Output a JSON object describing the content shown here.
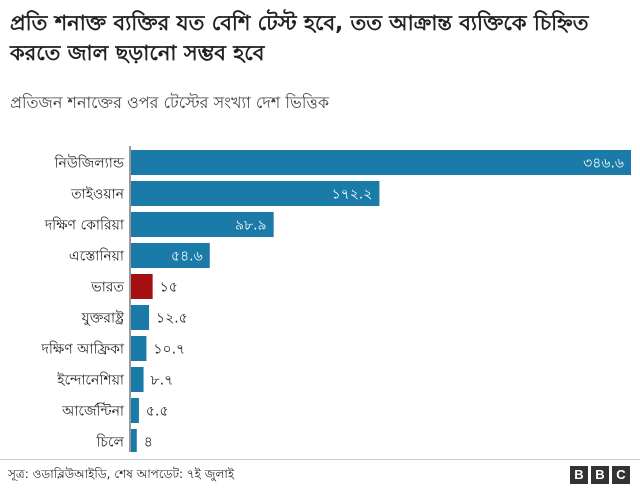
{
  "title": "প্রতি শনাক্ত ব্যক্তির যত বেশি টেস্ট হবে, তত আক্রান্ত ব্যক্তিকে চিহ্নিত করতে জাল ছড়ানো সম্ভব হবে",
  "subtitle": "প্রতিজন শনাক্তের ওপর টেস্টের সংখ্যা দেশ ভিত্তিক",
  "source": "সূত্র: ওডাব্লিউআইডি, শেষ আপডেট: ৭ই জুলাই",
  "logo": [
    "B",
    "B",
    "C"
  ],
  "colors": {
    "default": "#1a7aa8",
    "highlight": "#a50f0f",
    "label_inside": "#ffffff",
    "label_outside": "#222222"
  },
  "chart_data": {
    "type": "bar",
    "orientation": "horizontal",
    "categories": [
      "নিউজিল্যান্ড",
      "তাইওয়ান",
      "দক্ষিণ কোরিয়া",
      "এস্তোনিয়া",
      "ভারত",
      "যুক্তরাষ্ট্র",
      "দক্ষিণ আফ্রিকা",
      "ইন্দোনেশিয়া",
      "আর্জেন্টিনা",
      "চিলে"
    ],
    "values": [
      346.6,
      172.2,
      98.9,
      54.6,
      15,
      12.5,
      10.7,
      8.7,
      5.5,
      4
    ],
    "value_labels": [
      "৩৪৬.৬",
      "১৭২.২",
      "৯৮.৯",
      "৫৪.৬",
      "১৫",
      "১২.৫",
      "১০.৭",
      "৮.৭",
      "৫.৫",
      "৪"
    ],
    "highlight": "ভারত",
    "xlim": [
      0,
      346.6
    ],
    "grid": false
  }
}
